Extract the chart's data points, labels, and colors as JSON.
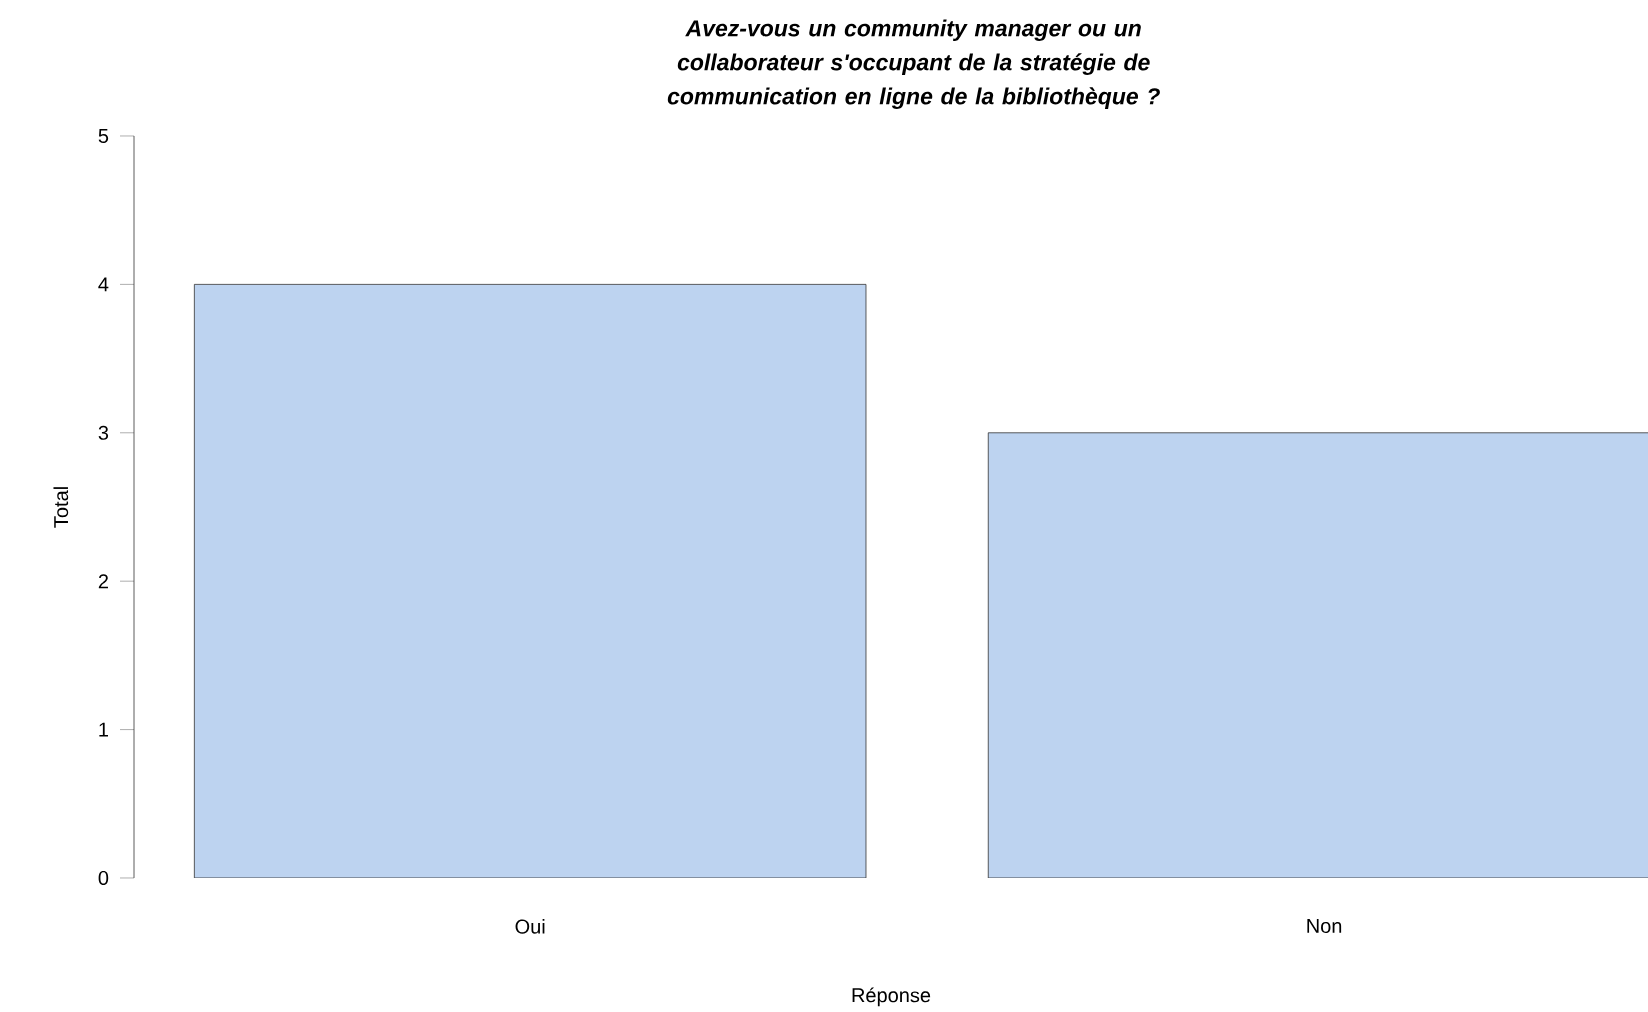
{
  "chart_data": {
    "type": "bar",
    "title": "Avez-vous un community manager ou un collaborateur s'occupant de la stratégie de communication en ligne de la bibliothèque ?",
    "xlabel": "Réponse",
    "ylabel": "Total",
    "categories": [
      "Oui",
      "Non"
    ],
    "values": [
      4,
      3
    ],
    "color": "#bdd3f0",
    "ylim": [
      0,
      5
    ],
    "yticks": [
      0,
      1,
      2,
      3,
      4,
      5
    ]
  }
}
